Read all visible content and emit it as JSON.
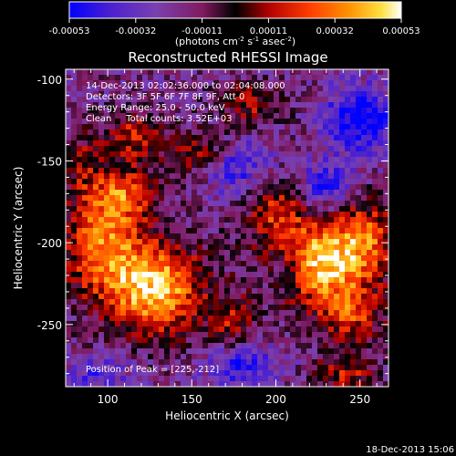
{
  "chart_data": {
    "type": "heatmap",
    "title": "Reconstructed RHESSI Image",
    "xlabel": "Heliocentric X (arcsec)",
    "ylabel": "Heliocentric Y (arcsec)",
    "xlim": [
      75,
      267
    ],
    "ylim": [
      -288,
      -94
    ],
    "x_ticks": [
      100,
      150,
      200,
      250
    ],
    "y_ticks": [
      -100,
      -150,
      -200,
      -250
    ],
    "colorbar": {
      "min": -0.00053,
      "max": 0.00053,
      "ticks": [
        "-0.00053",
        "-0.00032",
        "-0.00011",
        "0.00011",
        "0.00032",
        "0.00053"
      ],
      "unit_label_parts": [
        "(photons cm",
        "-2",
        " s",
        "-1",
        " asec",
        "-2",
        ")"
      ],
      "colors": [
        "#0000ff",
        "#5020c8",
        "#7a3ca0",
        "#8a2060",
        "#000000",
        "#b00000",
        "#ff4000",
        "#ff9000",
        "#ffe040",
        "#ffffff"
      ]
    },
    "annotations": [
      "14-Dec-2013 02:02:36.000 to 02:04:08.000",
      "Detectors: 3F 5F 6F 7F 8F 9F, Att 0",
      "Energy Range: 25.0 - 50.0 keV",
      "Clean     Total counts: 3.52E+03"
    ],
    "peak_label": "Position of Peak = [225,-212]",
    "peak": [
      225,
      -212
    ],
    "sources": [
      {
        "x": 225,
        "y": -212,
        "amp": 1.0,
        "sx": 22,
        "sy": 18
      },
      {
        "x": 128,
        "y": -228,
        "amp": 0.95,
        "sx": 20,
        "sy": 20
      },
      {
        "x": 95,
        "y": -200,
        "amp": 0.7,
        "sx": 16,
        "sy": 22
      },
      {
        "x": 110,
        "y": -170,
        "amp": 0.55,
        "sx": 14,
        "sy": 12
      },
      {
        "x": 115,
        "y": -135,
        "amp": 0.5,
        "sx": 12,
        "sy": 10
      },
      {
        "x": 160,
        "y": -145,
        "amp": 0.55,
        "sx": 16,
        "sy": 10
      },
      {
        "x": 185,
        "y": -115,
        "amp": 0.4,
        "sx": 14,
        "sy": 10
      },
      {
        "x": 200,
        "y": -180,
        "amp": 0.45,
        "sx": 12,
        "sy": 14
      },
      {
        "x": 255,
        "y": -195,
        "amp": 0.5,
        "sx": 12,
        "sy": 16
      },
      {
        "x": 245,
        "y": -245,
        "amp": 0.5,
        "sx": 14,
        "sy": 12
      },
      {
        "x": 175,
        "y": -250,
        "amp": 0.4,
        "sx": 10,
        "sy": 12
      },
      {
        "x": 240,
        "y": -280,
        "amp": 0.45,
        "sx": 14,
        "sy": 8
      },
      {
        "x": 85,
        "y": -150,
        "amp": 0.3,
        "sx": 8,
        "sy": 14
      }
    ],
    "negative_regions": [
      {
        "x": 175,
        "y": -150,
        "amp": 0.75,
        "sx": 14,
        "sy": 12
      },
      {
        "x": 250,
        "y": -125,
        "amp": 0.8,
        "sx": 14,
        "sy": 14
      },
      {
        "x": 230,
        "y": -165,
        "amp": 0.55,
        "sx": 12,
        "sy": 10
      },
      {
        "x": 205,
        "y": -215,
        "amp": 0.55,
        "sx": 10,
        "sy": 12
      },
      {
        "x": 180,
        "y": -275,
        "amp": 0.55,
        "sx": 16,
        "sy": 10
      },
      {
        "x": 95,
        "y": -280,
        "amp": 0.4,
        "sx": 14,
        "sy": 8
      }
    ]
  },
  "footer": {
    "timestamp": "18-Dec-2013 15:06"
  }
}
